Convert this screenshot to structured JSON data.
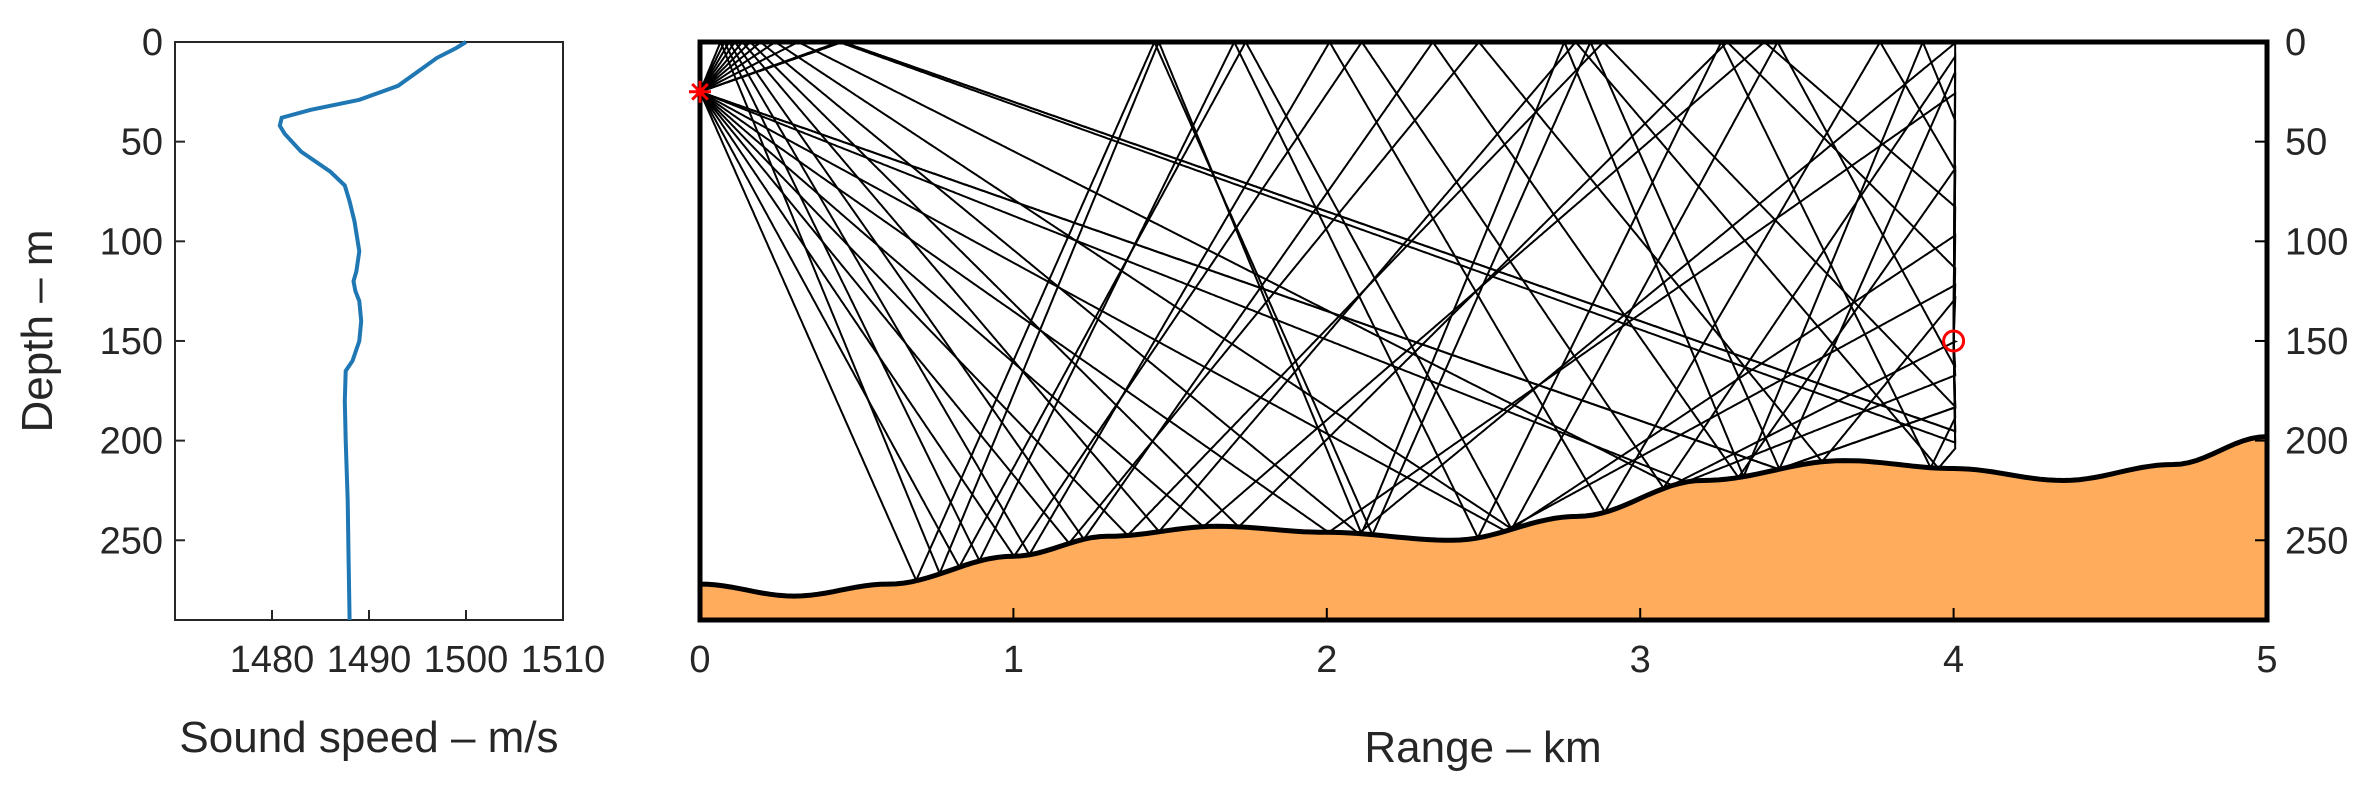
{
  "chart_data": [
    {
      "type": "line",
      "panel": "sound-speed-profile",
      "xlabel": "Sound speed – m/s",
      "ylabel": "Depth – m",
      "xlim": [
        1470,
        1510
      ],
      "ylim": [
        0,
        290
      ],
      "y_reversed": true,
      "xticks": [
        1480,
        1490,
        1500,
        1510
      ],
      "yticks": [
        0,
        50,
        100,
        150,
        200,
        250
      ],
      "grid": false,
      "series_color": "#1f77b4",
      "x": [
        1500,
        1499,
        1497,
        1495,
        1493,
        1489,
        1484,
        1481,
        1480.8,
        1481.3,
        1483,
        1486,
        1487.5,
        1488,
        1488.5,
        1489,
        1488.7,
        1488.4,
        1488.6,
        1489,
        1489.2,
        1489,
        1488.3,
        1487.6,
        1487.5,
        1487.6,
        1487.8,
        1487.9,
        1488
      ],
      "y": [
        0,
        3,
        8,
        15,
        22,
        29,
        34,
        38,
        42,
        46,
        55,
        65,
        72,
        80,
        90,
        105,
        115,
        120,
        125,
        130,
        140,
        150,
        160,
        165,
        180,
        200,
        230,
        260,
        290
      ]
    },
    {
      "type": "line",
      "panel": "ray-trace",
      "xlabel": "Range – km",
      "ylabel": "",
      "xlim": [
        0,
        5
      ],
      "ylim": [
        0,
        290
      ],
      "y_reversed": true,
      "xticks": [
        0,
        1,
        2,
        3,
        4,
        5
      ],
      "yticks": [
        0,
        50,
        100,
        150,
        200,
        250
      ],
      "y_axis_side": "right",
      "grid": false,
      "ray_color": "#000000",
      "seabed_fill": "#ffad5c",
      "source": {
        "range": 0,
        "depth": 25,
        "marker": "asterisk",
        "color": "#ff0000"
      },
      "receiver": {
        "range": 4,
        "depth": 150,
        "marker": "circle",
        "color": "#ff0000"
      },
      "bathymetry": {
        "x": [
          0,
          0.3,
          0.6,
          1.0,
          1.3,
          1.65,
          2.0,
          2.4,
          2.8,
          3.2,
          3.65,
          4.0,
          4.35,
          4.7,
          5.0
        ],
        "y": [
          272,
          278,
          272,
          258,
          248,
          243,
          246,
          250,
          238,
          220,
          210,
          214,
          220,
          212,
          198
        ]
      },
      "ray_launch_angles_deg": [
        -3,
        -6,
        -10,
        -14,
        -18,
        -22,
        -26,
        -30,
        -35,
        -40,
        -45,
        -50,
        4,
        7,
        11,
        15,
        19,
        23,
        27,
        31,
        36,
        42,
        48
      ]
    }
  ]
}
